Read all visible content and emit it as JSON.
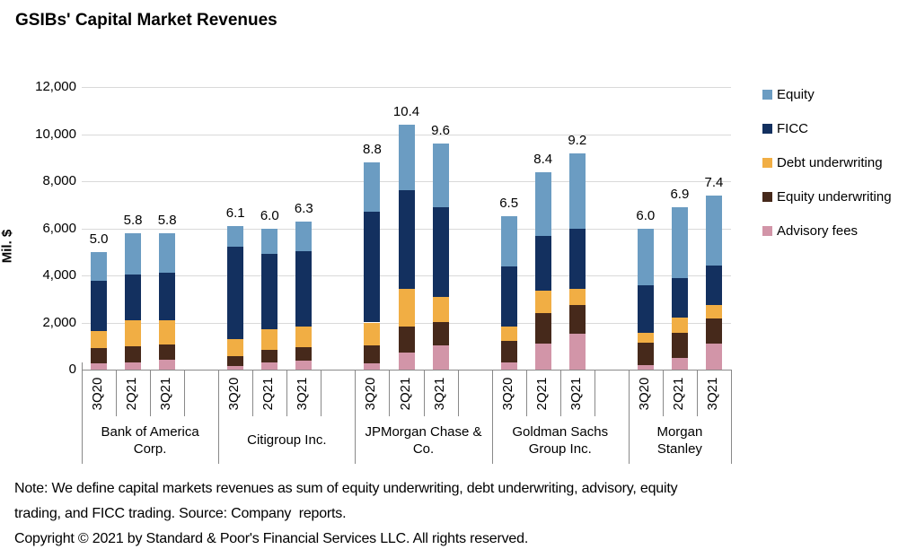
{
  "title": "GSIBs' Capital Market Revenues",
  "y_axis": {
    "label": "Mil. $",
    "ticks": [
      {
        "label": "12,000",
        "value": 12000
      },
      {
        "label": "10,000",
        "value": 10000
      },
      {
        "label": "8,000",
        "value": 8000
      },
      {
        "label": "6,000",
        "value": 6000
      },
      {
        "label": "4,000",
        "value": 4000
      },
      {
        "label": "2,000",
        "value": 2000
      },
      {
        "label": "0",
        "value": 0
      }
    ]
  },
  "legend": [
    {
      "label": "Equity",
      "color": "#6b9cc2"
    },
    {
      "label": "FICC",
      "color": "#13305f"
    },
    {
      "label": "Debt underwriting",
      "color": "#f1ae44"
    },
    {
      "label": "Equity underwriting",
      "color": "#46291b"
    },
    {
      "label": "Advisory fees",
      "color": "#d295a8"
    }
  ],
  "chart_data": {
    "type": "bar",
    "stacked": true,
    "title": "GSIBs' Capital Market Revenues",
    "ylabel": "Mil. $",
    "ylim": [
      0,
      12000
    ],
    "y_step": 2000,
    "grid": true,
    "legend_position": "right",
    "unit": "Mil. $",
    "quarters": [
      "3Q20",
      "2Q21",
      "3Q21"
    ],
    "stack_order_bottom_to_top": [
      "Advisory fees",
      "Equity underwriting",
      "Debt underwriting",
      "FICC",
      "Equity"
    ],
    "groups": [
      {
        "name": "Bank of America Corp.",
        "bars": [
          {
            "quarter": "3Q20",
            "total_label": "5.0",
            "values": {
              "Advisory fees": 250,
              "Equity underwriting": 680,
              "Debt underwriting": 700,
              "FICC": 2130,
              "Equity": 1240
            }
          },
          {
            "quarter": "2Q21",
            "total_label": "5.8",
            "values": {
              "Advisory fees": 300,
              "Equity underwriting": 680,
              "Debt underwriting": 1110,
              "FICC": 1950,
              "Equity": 1760
            }
          },
          {
            "quarter": "3Q21",
            "total_label": "5.8",
            "values": {
              "Advisory fees": 420,
              "Equity underwriting": 640,
              "Debt underwriting": 1050,
              "FICC": 1990,
              "Equity": 1700
            }
          }
        ]
      },
      {
        "name": "Citigroup Inc.",
        "bars": [
          {
            "quarter": "3Q20",
            "total_label": "6.1",
            "values": {
              "Advisory fees": 160,
              "Equity underwriting": 400,
              "Debt underwriting": 730,
              "FICC": 3920,
              "Equity": 890
            }
          },
          {
            "quarter": "2Q21",
            "total_label": "6.0",
            "values": {
              "Advisory fees": 310,
              "Equity underwriting": 510,
              "Debt underwriting": 900,
              "FICC": 3190,
              "Equity": 1090
            }
          },
          {
            "quarter": "3Q21",
            "total_label": "6.3",
            "values": {
              "Advisory fees": 370,
              "Equity underwriting": 580,
              "Debt underwriting": 860,
              "FICC": 3200,
              "Equity": 1290
            }
          }
        ]
      },
      {
        "name": "JPMorgan Chase & Co.",
        "bars": [
          {
            "quarter": "3Q20",
            "total_label": "8.8",
            "values": {
              "Advisory fees": 260,
              "Equity underwriting": 780,
              "Debt underwriting": 960,
              "FICC": 4690,
              "Equity": 2110
            }
          },
          {
            "quarter": "2Q21",
            "total_label": "10.4",
            "values": {
              "Advisory fees": 710,
              "Equity underwriting": 1110,
              "Debt underwriting": 1610,
              "FICC": 4190,
              "Equity": 2780
            }
          },
          {
            "quarter": "3Q21",
            "total_label": "9.6",
            "values": {
              "Advisory fees": 1010,
              "Equity underwriting": 1000,
              "Debt underwriting": 1090,
              "FICC": 3780,
              "Equity": 2720
            }
          }
        ]
      },
      {
        "name": "Goldman Sachs Group Inc.",
        "bars": [
          {
            "quarter": "3Q20",
            "total_label": "6.5",
            "values": {
              "Advisory fees": 320,
              "Equity underwriting": 900,
              "Debt underwriting": 590,
              "FICC": 2580,
              "Equity": 2110
            }
          },
          {
            "quarter": "2Q21",
            "total_label": "8.4",
            "values": {
              "Advisory fees": 1110,
              "Equity underwriting": 1280,
              "Debt underwriting": 980,
              "FICC": 2300,
              "Equity": 2730
            }
          },
          {
            "quarter": "3Q21",
            "total_label": "9.2",
            "values": {
              "Advisory fees": 1520,
              "Equity underwriting": 1220,
              "Debt underwriting": 700,
              "FICC": 2560,
              "Equity": 3200
            }
          }
        ]
      },
      {
        "name": "Morgan Stanley",
        "bars": [
          {
            "quarter": "3Q20",
            "total_label": "6.0",
            "values": {
              "Advisory fees": 200,
              "Equity underwriting": 930,
              "Debt underwriting": 450,
              "FICC": 1990,
              "Equity": 2430
            }
          },
          {
            "quarter": "2Q21",
            "total_label": "6.9",
            "values": {
              "Advisory fees": 490,
              "Equity underwriting": 1090,
              "Debt underwriting": 640,
              "FICC": 1680,
              "Equity": 3000
            }
          },
          {
            "quarter": "3Q21",
            "total_label": "7.4",
            "values": {
              "Advisory fees": 1120,
              "Equity underwriting": 1050,
              "Debt underwriting": 580,
              "FICC": 1660,
              "Equity": 2990
            }
          }
        ]
      }
    ]
  },
  "notes": {
    "line1": "Note: We define capital markets revenues as sum of equity underwriting, debt underwriting, advisory, equity",
    "line2": "trading, and FICC trading. Source: Company  reports.",
    "copyright": "Copyright © 2021 by Standard & Poor's Financial Services LLC. All rights reserved."
  },
  "colors": {
    "background": "#ffffff",
    "gridline": "#d9d9d9",
    "axis_line": "#898989",
    "text": "#000000"
  }
}
